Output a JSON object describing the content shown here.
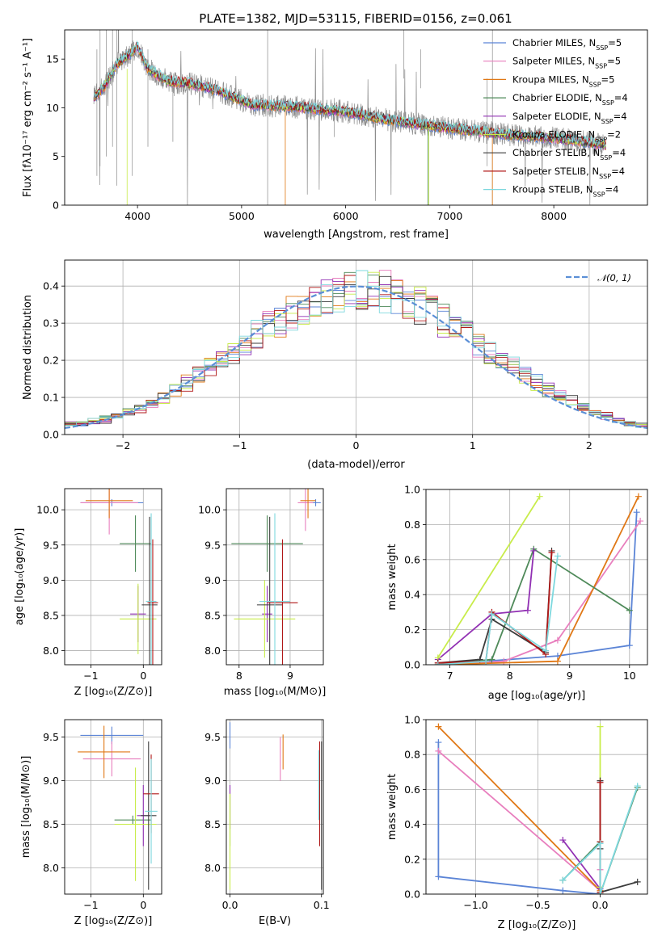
{
  "title": "PLATE=1382, MJD=53115, FIBERID=0156, z=0.061",
  "colors": {
    "chabrier_miles": "#5b84d6",
    "salpeter_miles": "#e87fbe",
    "kroupa_miles": "#e07816",
    "chabrier_elodie": "#4f8a5a",
    "salpeter_elodie": "#9130b3",
    "kroupa_elodie": "#c8ec4a",
    "chabrier_stelib": "#3b3b3b",
    "salpeter_stelib": "#b01818",
    "kroupa_stelib": "#7ed8de",
    "data": "#8c8c8c",
    "gauss": "#5b8fd6",
    "grid": "#b0b0b0"
  },
  "chart_data": [
    {
      "type": "line",
      "id": "spectrum",
      "xlabel": "wavelength [Angstrom, rest frame]",
      "ylabel": "Flux [fλ10⁻¹⁷ erg cm⁻² s⁻¹ A⁻¹]",
      "xlim": [
        3300,
        8900
      ],
      "ylim": [
        0,
        18
      ],
      "xticks": [
        4000,
        5000,
        6000,
        7000,
        8000
      ],
      "yticks": [
        0,
        5,
        10,
        15
      ],
      "grid": false,
      "legend_position": "top-right",
      "continuum": {
        "x": [
          3580,
          3700,
          3800,
          3900,
          4000,
          4100,
          4300,
          4500,
          4700,
          4900,
          5100,
          5500,
          6000,
          6500,
          7000,
          7500,
          8000,
          8500
        ],
        "y": [
          11.0,
          12.5,
          14.5,
          15.3,
          16.3,
          14.0,
          12.7,
          12.5,
          12.0,
          11.2,
          10.3,
          10.1,
          9.6,
          8.6,
          7.9,
          7.3,
          6.9,
          6.2
        ]
      },
      "series": [
        {
          "name": "Chabrier MILES, N_SSP=5",
          "color_key": "chabrier_miles"
        },
        {
          "name": "Salpeter MILES, N_SSP=5",
          "color_key": "salpeter_miles"
        },
        {
          "name": "Kroupa MILES, N_SSP=5",
          "color_key": "kroupa_miles"
        },
        {
          "name": "Chabrier ELODIE, N_SSP=4",
          "color_key": "chabrier_elodie"
        },
        {
          "name": "Salpeter ELODIE, N_SSP=4",
          "color_key": "salpeter_elodie"
        },
        {
          "name": "Kroupa ELODIE, N_SSP=2",
          "color_key": "kroupa_elodie"
        },
        {
          "name": "Chabrier STELIB, N_SSP=4",
          "color_key": "chabrier_stelib"
        },
        {
          "name": "Salpeter STELIB, N_SSP=4",
          "color_key": "salpeter_stelib"
        },
        {
          "name": "Kroupa STELIB, N_SSP=4",
          "color_key": "kroupa_stelib"
        }
      ],
      "legend_entries": [
        {
          "prefix": "Chabrier MILES, N",
          "sub": "SSP",
          "suffix": "=5",
          "color_key": "chabrier_miles"
        },
        {
          "prefix": "Salpeter MILES, N",
          "sub": "SSP",
          "suffix": "=5",
          "color_key": "salpeter_miles"
        },
        {
          "prefix": "Kroupa MILES, N",
          "sub": "SSP",
          "suffix": "=5",
          "color_key": "kroupa_miles"
        },
        {
          "prefix": "Chabrier ELODIE, N",
          "sub": "SSP",
          "suffix": "=4",
          "color_key": "chabrier_elodie"
        },
        {
          "prefix": "Salpeter ELODIE, N",
          "sub": "SSP",
          "suffix": "=4",
          "color_key": "salpeter_elodie"
        },
        {
          "prefix": "Kroupa ELODIE, N",
          "sub": "SSP",
          "suffix": "=2",
          "color_key": "kroupa_elodie"
        },
        {
          "prefix": "Chabrier STELIB, N",
          "sub": "SSP",
          "suffix": "=4",
          "color_key": "chabrier_stelib"
        },
        {
          "prefix": "Salpeter STELIB, N",
          "sub": "SSP",
          "suffix": "=4",
          "color_key": "salpeter_stelib"
        },
        {
          "prefix": "Kroupa STELIB, N",
          "sub": "SSP",
          "suffix": "=4",
          "color_key": "kroupa_stelib"
        }
      ]
    },
    {
      "type": "bar",
      "id": "residuals",
      "xlabel": "(data-model)/error",
      "ylabel": "Normed distribution",
      "xlim": [
        -2.5,
        2.5
      ],
      "ylim": [
        0,
        0.47
      ],
      "xticks": [
        -2,
        -1,
        0,
        1,
        2
      ],
      "yticks": [
        0.0,
        0.1,
        0.2,
        0.3,
        0.4
      ],
      "grid": true,
      "legend_position": "top-right",
      "bin_edges_start": -2.5,
      "bin_width": 0.1,
      "base_histogram": [
        0.03,
        0.03,
        0.035,
        0.04,
        0.05,
        0.06,
        0.07,
        0.085,
        0.1,
        0.12,
        0.14,
        0.16,
        0.18,
        0.2,
        0.22,
        0.245,
        0.27,
        0.29,
        0.31,
        0.33,
        0.34,
        0.36,
        0.37,
        0.38,
        0.39,
        0.39,
        0.39,
        0.385,
        0.375,
        0.36,
        0.35,
        0.33,
        0.31,
        0.29,
        0.27,
        0.24,
        0.22,
        0.2,
        0.18,
        0.16,
        0.14,
        0.12,
        0.105,
        0.09,
        0.075,
        0.06,
        0.05,
        0.04,
        0.03,
        0.025
      ],
      "gaussian_label": "𝒩(0, 1)"
    },
    {
      "type": "scatter",
      "id": "age_vs_Z",
      "xlabel": "Z [log₁₀(Z/Z⊙)]",
      "ylabel": "age  [log₁₀(age/yr)]",
      "xlim": [
        -1.5,
        0.35
      ],
      "ylim": [
        7.8,
        10.3
      ],
      "xticks": [
        -1,
        0
      ],
      "yticks": [
        8.0,
        8.5,
        9.0,
        9.5,
        10.0
      ],
      "grid": true,
      "points": [
        {
          "key": "chabrier_miles",
          "x": -0.6,
          "y": 10.1,
          "xerr": 0.6,
          "yerr": 0.05
        },
        {
          "key": "salpeter_miles",
          "x": -0.65,
          "y": 10.1,
          "xerr": 0.55,
          "yerr": 0.45
        },
        {
          "key": "kroupa_miles",
          "x": -0.65,
          "y": 10.13,
          "xerr": 0.45,
          "yerr": 0.25
        },
        {
          "key": "chabrier_elodie",
          "x": -0.15,
          "y": 9.52,
          "xerr": 0.3,
          "yerr": 0.4
        },
        {
          "key": "salpeter_elodie",
          "x": -0.1,
          "y": 8.52,
          "xerr": 0.15,
          "yerr": 0.4
        },
        {
          "key": "kroupa_elodie",
          "x": -0.1,
          "y": 8.45,
          "xerr": 0.35,
          "yerr": 0.5
        },
        {
          "key": "chabrier_stelib",
          "x": 0.12,
          "y": 8.65,
          "xerr": 0.15,
          "yerr": 1.25
        },
        {
          "key": "salpeter_stelib",
          "x": 0.18,
          "y": 8.68,
          "xerr": 0.1,
          "yerr": 0.9
        },
        {
          "key": "kroupa_stelib",
          "x": 0.15,
          "y": 8.7,
          "xerr": 0.1,
          "yerr": 1.25
        }
      ]
    },
    {
      "type": "scatter",
      "id": "age_vs_mass",
      "xlabel": "mass [log₁₀(M/M⊙)]",
      "ylabel": "",
      "xlim": [
        7.75,
        9.65
      ],
      "ylim": [
        7.8,
        10.3
      ],
      "xticks": [
        8,
        9
      ],
      "yticks": [
        8.0,
        8.5,
        9.0,
        9.5,
        10.0
      ],
      "grid": true,
      "points": [
        {
          "key": "chabrier_miles",
          "x": 9.5,
          "y": 10.1,
          "xerr": 0.1,
          "yerr": 0.05
        },
        {
          "key": "salpeter_miles",
          "x": 9.3,
          "y": 10.1,
          "xerr": 0.15,
          "yerr": 0.4
        },
        {
          "key": "kroupa_miles",
          "x": 9.35,
          "y": 10.13,
          "xerr": 0.15,
          "yerr": 0.25
        },
        {
          "key": "chabrier_elodie",
          "x": 8.55,
          "y": 9.52,
          "xerr": 0.7,
          "yerr": 0.4
        },
        {
          "key": "salpeter_elodie",
          "x": 8.55,
          "y": 8.52,
          "xerr": 0.1,
          "yerr": 0.4
        },
        {
          "key": "kroupa_elodie",
          "x": 8.5,
          "y": 8.45,
          "xerr": 0.6,
          "yerr": 0.55
        },
        {
          "key": "chabrier_stelib",
          "x": 8.6,
          "y": 8.65,
          "xerr": 0.25,
          "yerr": 1.25
        },
        {
          "key": "salpeter_stelib",
          "x": 8.85,
          "y": 8.68,
          "xerr": 0.3,
          "yerr": 0.9
        },
        {
          "key": "kroupa_stelib",
          "x": 8.7,
          "y": 8.7,
          "xerr": 0.3,
          "yerr": 1.25
        }
      ]
    },
    {
      "type": "line",
      "id": "massweight_vs_age",
      "xlabel": "age  [log₁₀(age/yr)]",
      "ylabel": "mass weight",
      "xlim": [
        6.6,
        10.3
      ],
      "ylim": [
        0,
        1.0
      ],
      "xticks": [
        7,
        8,
        9,
        10
      ],
      "yticks": [
        0.0,
        0.2,
        0.4,
        0.6,
        0.8,
        1.0
      ],
      "grid": true,
      "series": [
        {
          "key": "chabrier_miles",
          "x": [
            6.8,
            8.8,
            10.0,
            10.12
          ],
          "y": [
            0.0,
            0.05,
            0.11,
            0.87
          ]
        },
        {
          "key": "salpeter_miles",
          "x": [
            6.8,
            7.9,
            8.8,
            10.18
          ],
          "y": [
            0.0,
            0.02,
            0.14,
            0.82
          ]
        },
        {
          "key": "kroupa_miles",
          "x": [
            6.8,
            8.8,
            10.15
          ],
          "y": [
            0.0,
            0.02,
            0.96
          ]
        },
        {
          "key": "chabrier_elodie",
          "x": [
            6.8,
            7.7,
            8.4,
            10.0
          ],
          "y": [
            0.0,
            0.03,
            0.66,
            0.31
          ]
        },
        {
          "key": "salpeter_elodie",
          "x": [
            6.8,
            7.7,
            8.3,
            8.4
          ],
          "y": [
            0.03,
            0.29,
            0.31,
            0.65
          ]
        },
        {
          "key": "kroupa_elodie",
          "x": [
            6.8,
            8.5
          ],
          "y": [
            0.04,
            0.96
          ]
        },
        {
          "key": "chabrier_stelib",
          "x": [
            6.8,
            7.5,
            7.7,
            8.6,
            8.7
          ],
          "y": [
            0.01,
            0.03,
            0.26,
            0.07,
            0.65
          ]
        },
        {
          "key": "salpeter_stelib",
          "x": [
            6.8,
            7.6,
            7.7,
            8.6,
            8.7
          ],
          "y": [
            0.01,
            0.02,
            0.3,
            0.06,
            0.64
          ]
        },
        {
          "key": "kroupa_stelib",
          "x": [
            6.8,
            7.6,
            7.7,
            8.6,
            8.8
          ],
          "y": [
            0.0,
            0.02,
            0.29,
            0.08,
            0.62
          ]
        }
      ]
    },
    {
      "type": "scatter",
      "id": "mass_vs_Z",
      "xlabel": "Z [log₁₀(Z/Z⊙)]",
      "ylabel": "mass [log₁₀(M/M⊙)]",
      "xlim": [
        -1.5,
        0.35
      ],
      "ylim": [
        7.7,
        9.7
      ],
      "xticks": [
        -1,
        0
      ],
      "yticks": [
        8.0,
        8.5,
        9.0,
        9.5
      ],
      "grid": true,
      "points": [
        {
          "key": "chabrier_miles",
          "x": -0.6,
          "y": 9.52,
          "xerr": 0.6,
          "yerr": 0.1
        },
        {
          "key": "salpeter_miles",
          "x": -0.6,
          "y": 9.25,
          "xerr": 0.55,
          "yerr": 0.2
        },
        {
          "key": "kroupa_miles",
          "x": -0.75,
          "y": 9.33,
          "xerr": 0.5,
          "yerr": 0.3
        },
        {
          "key": "chabrier_elodie",
          "x": -0.2,
          "y": 8.55,
          "xerr": 0.35,
          "yerr": 0.05
        },
        {
          "key": "salpeter_elodie",
          "x": 0.0,
          "y": 8.6,
          "xerr": 0.12,
          "yerr": 0.35
        },
        {
          "key": "kroupa_elodie",
          "x": -0.15,
          "y": 8.5,
          "xerr": 0.4,
          "yerr": 0.65
        },
        {
          "key": "chabrier_stelib",
          "x": 0.1,
          "y": 8.6,
          "xerr": 0.15,
          "yerr": 0.85
        },
        {
          "key": "salpeter_stelib",
          "x": 0.15,
          "y": 8.85,
          "xerr": 0.15,
          "yerr": 0.45
        },
        {
          "key": "kroupa_stelib",
          "x": 0.15,
          "y": 8.65,
          "xerr": 0.12,
          "yerr": 0.6
        }
      ]
    },
    {
      "type": "scatter",
      "id": "mass_vs_ebv",
      "xlabel": "E(B-V)",
      "ylabel": "",
      "xlim": [
        -0.004,
        0.102
      ],
      "ylim": [
        7.7,
        9.7
      ],
      "xticks": [
        0.0,
        0.1
      ],
      "yticks": [
        8.0,
        8.5,
        9.0,
        9.5
      ],
      "grid": true,
      "points": [
        {
          "key": "chabrier_miles",
          "x": 0.0,
          "y": 9.52,
          "xerr": 0,
          "yerr": 0.15
        },
        {
          "key": "salpeter_miles",
          "x": 0.055,
          "y": 9.25,
          "xerr": 0,
          "yerr": 0.25
        },
        {
          "key": "kroupa_miles",
          "x": 0.058,
          "y": 9.33,
          "xerr": 0,
          "yerr": 0.2
        },
        {
          "key": "chabrier_elodie",
          "x": 0.0,
          "y": 8.55,
          "xerr": 0,
          "yerr": 0.3
        },
        {
          "key": "salpeter_elodie",
          "x": 0.0,
          "y": 8.7,
          "xerr": 0,
          "yerr": 0.25
        },
        {
          "key": "kroupa_elodie",
          "x": 0.0,
          "y": 8.3,
          "xerr": 0,
          "yerr": 0.55
        },
        {
          "key": "chabrier_stelib",
          "x": 0.1,
          "y": 8.6,
          "xerr": 0,
          "yerr": 0.85
        },
        {
          "key": "salpeter_stelib",
          "x": 0.098,
          "y": 8.85,
          "xerr": 0,
          "yerr": 0.6
        },
        {
          "key": "kroupa_stelib",
          "x": 0.097,
          "y": 8.95,
          "xerr": 0,
          "yerr": 0.4
        }
      ]
    },
    {
      "type": "line",
      "id": "massweight_vs_Z",
      "xlabel": "Z [log₁₀(Z/Z⊙)]",
      "ylabel": "mass weight",
      "xlim": [
        -1.4,
        0.38
      ],
      "ylim": [
        0,
        1.0
      ],
      "xticks": [
        -1.0,
        -0.5,
        0.0
      ],
      "yticks": [
        0.0,
        0.2,
        0.4,
        0.6,
        0.8,
        1.0
      ],
      "grid": true,
      "series": [
        {
          "key": "chabrier_miles",
          "x": [
            -1.3,
            -1.3,
            -0.3,
            0.0
          ],
          "y": [
            0.87,
            0.1,
            0.02,
            0.0
          ]
        },
        {
          "key": "salpeter_miles",
          "x": [
            -1.3,
            0.0,
            0.0
          ],
          "y": [
            0.82,
            0.02,
            0.14
          ]
        },
        {
          "key": "kroupa_miles",
          "x": [
            -1.3,
            0.0,
            0.0
          ],
          "y": [
            0.96,
            0.02,
            0.0
          ]
        },
        {
          "key": "chabrier_elodie",
          "x": [
            -0.3,
            0.0,
            0.0,
            0.3
          ],
          "y": [
            0.08,
            0.3,
            0.0,
            0.61
          ]
        },
        {
          "key": "salpeter_elodie",
          "x": [
            -0.3,
            0.0,
            0.0
          ],
          "y": [
            0.31,
            0.03,
            0.65
          ]
        },
        {
          "key": "kroupa_elodie",
          "x": [
            0.0,
            0.0
          ],
          "y": [
            0.96,
            0.04
          ]
        },
        {
          "key": "chabrier_stelib",
          "x": [
            0.0,
            0.0,
            0.0,
            0.3
          ],
          "y": [
            0.65,
            0.26,
            0.01,
            0.07
          ]
        },
        {
          "key": "salpeter_stelib",
          "x": [
            0.0,
            0.0,
            0.0
          ],
          "y": [
            0.64,
            0.3,
            0.01
          ]
        },
        {
          "key": "kroupa_stelib",
          "x": [
            -0.3,
            0.0,
            0.0,
            0.3
          ],
          "y": [
            0.08,
            0.29,
            0.0,
            0.62
          ]
        }
      ]
    }
  ]
}
